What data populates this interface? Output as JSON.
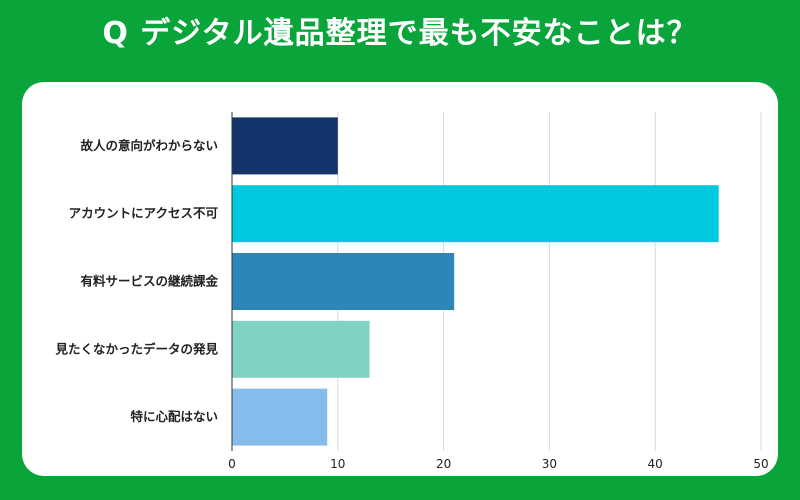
{
  "title": "Q デジタル遺品整理で最も不安なことは？",
  "chart_data": {
    "type": "bar",
    "orientation": "horizontal",
    "categories": [
      "故人の意向がわからない",
      "アカウントにアクセス不可",
      "有料サービスの継続課金",
      "見たくなかったデータの発見",
      "特に心配はない"
    ],
    "values": [
      10,
      46,
      21,
      13,
      9
    ],
    "colors": [
      "#12346a",
      "#00c9e0",
      "#2e86b8",
      "#7fd3c4",
      "#85bcec"
    ],
    "xlim": [
      0,
      50
    ],
    "xticks": [
      "0",
      "10",
      "20",
      "30",
      "40",
      "50"
    ],
    "grid": true
  }
}
